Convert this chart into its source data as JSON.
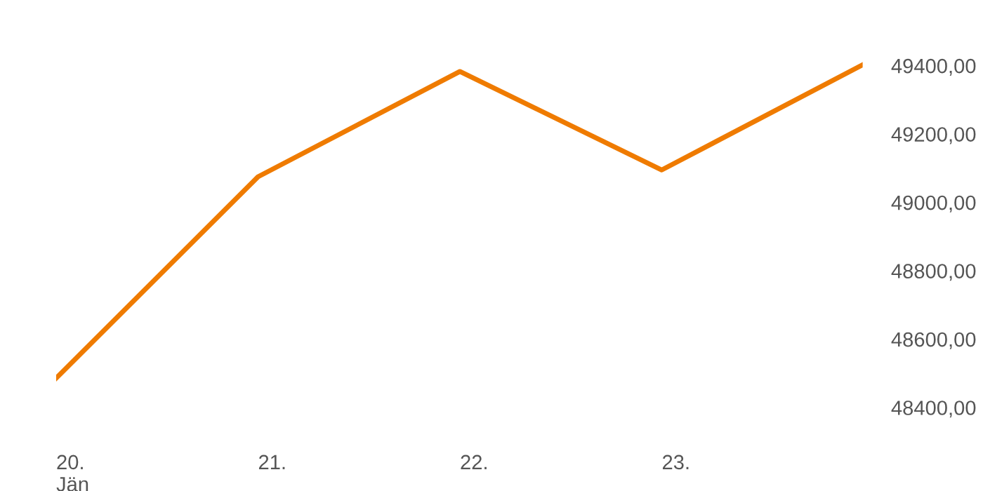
{
  "chart_data": {
    "type": "line",
    "categories": [
      "20.\nJän",
      "21.",
      "22.",
      "23.",
      null
    ],
    "series": [
      {
        "color": "#ef7b00",
        "values": [
          48486,
          49075,
          49383,
          49095,
          49404
        ]
      }
    ],
    "ylim": [
      48320,
      49510
    ],
    "yticks": [
      {
        "value": 48400,
        "label": "48400,00"
      },
      {
        "value": 48600,
        "label": "48600,00"
      },
      {
        "value": 48800,
        "label": "48800,00"
      },
      {
        "value": 49000,
        "label": "49000,00"
      },
      {
        "value": 49200,
        "label": "49200,00"
      },
      {
        "value": 49400,
        "label": "49400,00"
      }
    ],
    "grid": false,
    "legend": false,
    "marker": "none",
    "line_style": "solid"
  }
}
